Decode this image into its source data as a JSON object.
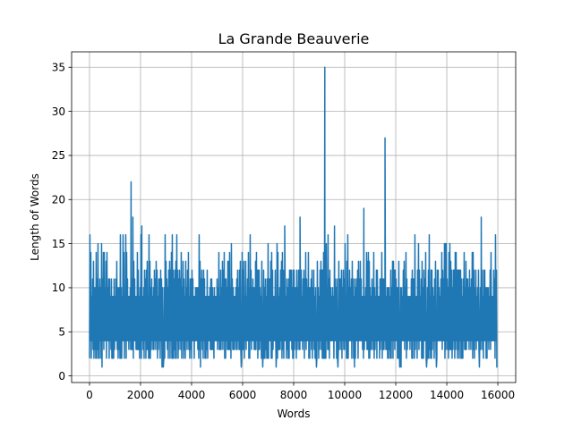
{
  "chart_data": {
    "type": "line",
    "title": "La Grande Beauverie",
    "xlabel": "Words",
    "ylabel": "Length of Words",
    "xlim": [
      -700,
      16700
    ],
    "ylim": [
      -0.75,
      36.75
    ],
    "xticks": [
      0,
      2000,
      4000,
      6000,
      8000,
      10000,
      12000,
      14000,
      16000
    ],
    "yticks": [
      0,
      5,
      10,
      15,
      20,
      25,
      30,
      35
    ],
    "grid": true,
    "series": [
      {
        "color": "#1f77b4",
        "x_start": 0,
        "x_end": 15990,
        "typical_min": 2,
        "typical_max": 12,
        "peaks": [
          {
            "x": 1630,
            "y": 22
          },
          {
            "x": 1700,
            "y": 18
          },
          {
            "x": 2050,
            "y": 17
          },
          {
            "x": 7650,
            "y": 17
          },
          {
            "x": 8250,
            "y": 18
          },
          {
            "x": 9220,
            "y": 35
          },
          {
            "x": 9600,
            "y": 17
          },
          {
            "x": 10750,
            "y": 19
          },
          {
            "x": 11580,
            "y": 27
          },
          {
            "x": 15350,
            "y": 18
          }
        ]
      }
    ]
  }
}
